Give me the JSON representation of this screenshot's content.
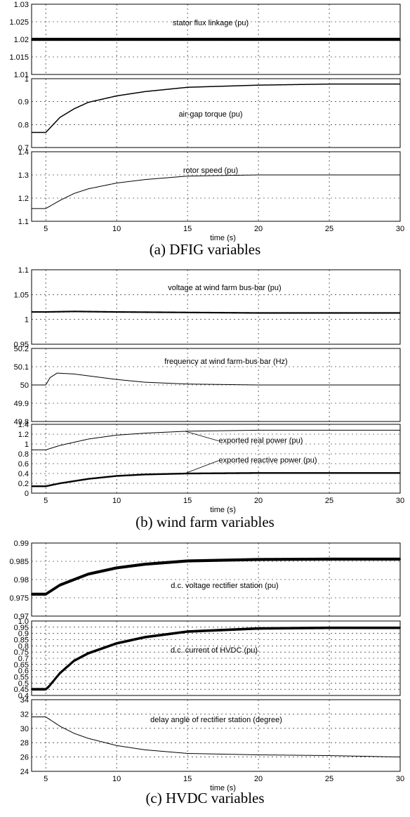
{
  "figure": {
    "captions": [
      "(a)   DFIG variables",
      "(b)   wind farm variables",
      "(c)   HVDC variables"
    ]
  },
  "chart_data": [
    {
      "type": "line",
      "group": 0,
      "xlim": [
        4,
        30
      ],
      "ylim": [
        1.01,
        1.03
      ],
      "yticks": [
        "1.01",
        "1.015",
        "1.02",
        "1.025",
        "1.03"
      ],
      "show_xticks": false,
      "series": [
        {
          "label": "stator flux linkage (pu)",
          "x": [
            4,
            5,
            10,
            15,
            20,
            25,
            30
          ],
          "y": [
            1.02,
            1.02,
            1.02,
            1.02,
            1.02,
            1.02,
            1.02
          ],
          "noise": 0.0006,
          "width": 1.6
        }
      ]
    },
    {
      "type": "line",
      "group": 0,
      "xlim": [
        4,
        30
      ],
      "ylim": [
        0.7,
        1.02
      ],
      "yticks": [
        "0.7",
        "0.8",
        "0.9",
        "1"
      ],
      "show_xticks": false,
      "series": [
        {
          "label": "air-gap torque (pu)",
          "x": [
            4,
            5,
            6,
            7,
            8,
            10,
            12,
            15,
            20,
            25,
            30
          ],
          "y": [
            0.77,
            0.77,
            0.84,
            0.88,
            0.91,
            0.94,
            0.96,
            0.98,
            0.99,
            0.995,
            0.995
          ],
          "width": 1.5
        }
      ]
    },
    {
      "type": "line",
      "group": 0,
      "xlim": [
        4,
        30
      ],
      "ylim": [
        1.1,
        1.4
      ],
      "yticks": [
        "1.1",
        "1.2",
        "1.3",
        "1.4"
      ],
      "show_xticks": true,
      "xticks": [
        "5",
        "10",
        "15",
        "20",
        "25",
        "30"
      ],
      "xlabel": "time (s)",
      "series": [
        {
          "label": "rotor speed (pu)",
          "x": [
            4,
            5,
            6,
            7,
            8,
            10,
            12,
            15,
            20,
            25,
            30
          ],
          "y": [
            1.155,
            1.155,
            1.19,
            1.22,
            1.24,
            1.265,
            1.28,
            1.295,
            1.3,
            1.3,
            1.3
          ],
          "width": 1
        }
      ]
    },
    {
      "type": "line",
      "group": 1,
      "xlim": [
        4,
        30
      ],
      "ylim": [
        0.95,
        1.1
      ],
      "yticks": [
        "0.95",
        "1",
        "1.05",
        "1.1"
      ],
      "show_xticks": false,
      "series": [
        {
          "label": "voltage at wind farm bus-bar (pu)",
          "x": [
            4,
            5,
            7,
            10,
            15,
            20,
            25,
            30
          ],
          "y": [
            1.015,
            1.015,
            1.016,
            1.015,
            1.014,
            1.013,
            1.013,
            1.013
          ],
          "noise": 0.001,
          "width": 1.6
        }
      ]
    },
    {
      "type": "line",
      "group": 1,
      "xlim": [
        4,
        30
      ],
      "ylim": [
        49.8,
        50.2
      ],
      "yticks": [
        "49.8",
        "49.9",
        "50",
        "50.1",
        "50.2"
      ],
      "show_xticks": false,
      "series": [
        {
          "label": "frequency at wind farm-bus bar (Hz)",
          "x": [
            4,
            5,
            5.3,
            5.8,
            7,
            8,
            10,
            12,
            15,
            20,
            25,
            30
          ],
          "y": [
            50,
            50,
            50.04,
            50.065,
            50.06,
            50.05,
            50.03,
            50.015,
            50.005,
            50.0,
            50.0,
            50.0
          ],
          "width": 1
        }
      ]
    },
    {
      "type": "line",
      "group": 1,
      "xlim": [
        4,
        30
      ],
      "ylim": [
        0,
        1.4
      ],
      "yticks": [
        "0",
        "0.2",
        "0.4",
        "0.6",
        "0.8",
        "1",
        "1.2",
        "1.4"
      ],
      "show_xticks": true,
      "xticks": [
        "5",
        "10",
        "15",
        "20",
        "25",
        "30"
      ],
      "xlabel": "time (s)",
      "series": [
        {
          "label": "exported real power (pu)",
          "x": [
            4,
            5,
            6,
            8,
            10,
            12,
            15,
            20,
            25,
            30
          ],
          "y": [
            0.88,
            0.88,
            0.97,
            1.1,
            1.18,
            1.22,
            1.26,
            1.28,
            1.28,
            1.28
          ],
          "width": 1
        },
        {
          "label": "exported reactive power (pu)",
          "x": [
            4,
            5,
            6,
            8,
            10,
            12,
            15,
            20,
            25,
            30
          ],
          "y": [
            0.14,
            0.14,
            0.2,
            0.29,
            0.35,
            0.38,
            0.4,
            0.41,
            0.41,
            0.41
          ],
          "width": 2.4
        }
      ],
      "annotations": [
        {
          "text": "exported real power (pu)",
          "ax": 17.2,
          "ay": 1.02,
          "tx": 14.8,
          "ty": 1.26
        },
        {
          "text": "exported reactive power (pu)",
          "ax": 17.2,
          "ay": 0.62,
          "tx": 14.8,
          "ty": 0.4
        }
      ]
    },
    {
      "type": "line",
      "group": 2,
      "xlim": [
        4,
        30
      ],
      "ylim": [
        0.97,
        0.99
      ],
      "yticks": [
        "0.97",
        "0.975",
        "0.98",
        "0.985",
        "0.99"
      ],
      "show_xticks": false,
      "series": [
        {
          "label": "d.c. voltage rectifier station (pu)",
          "x": [
            4,
            5,
            6,
            7,
            8,
            10,
            12,
            15,
            20,
            25,
            30
          ],
          "y": [
            0.976,
            0.976,
            0.9785,
            0.98,
            0.9815,
            0.9832,
            0.9842,
            0.9851,
            0.9855,
            0.9856,
            0.9856
          ],
          "noise": 0.0004,
          "width": 2.2
        }
      ]
    },
    {
      "type": "line",
      "group": 2,
      "xlim": [
        4,
        30
      ],
      "ylim": [
        0.4,
        1.0
      ],
      "yticks": [
        "0.4",
        "0.45",
        "0.5",
        "0.55",
        "0.6",
        "0.65",
        "0.7",
        "0.75",
        "0.8",
        "0.85",
        "0.9",
        "0.95",
        "1.0"
      ],
      "show_xticks": false,
      "series": [
        {
          "label": "d.c. current of HVDC (pu)",
          "x": [
            4,
            5,
            5.2,
            6,
            7,
            8,
            10,
            12,
            15,
            20,
            25,
            30
          ],
          "y": [
            0.45,
            0.45,
            0.47,
            0.58,
            0.68,
            0.74,
            0.82,
            0.87,
            0.915,
            0.94,
            0.945,
            0.945
          ],
          "noise": 0.006,
          "width": 2.6
        }
      ]
    },
    {
      "type": "line",
      "group": 2,
      "xlim": [
        4,
        30
      ],
      "ylim": [
        24,
        34
      ],
      "yticks": [
        "24",
        "26",
        "28",
        "30",
        "32",
        "34"
      ],
      "show_xticks": true,
      "xticks": [
        "5",
        "10",
        "15",
        "20",
        "25",
        "30"
      ],
      "xlabel": "time (s)",
      "series": [
        {
          "label": "delay angle of rectifier station (degree)",
          "x": [
            4,
            5,
            6,
            7,
            8,
            10,
            12,
            15,
            20,
            25,
            30
          ],
          "y": [
            31.6,
            31.6,
            30.3,
            29.3,
            28.6,
            27.6,
            27.0,
            26.5,
            26.3,
            26.2,
            26.0
          ],
          "width": 1
        }
      ]
    }
  ]
}
